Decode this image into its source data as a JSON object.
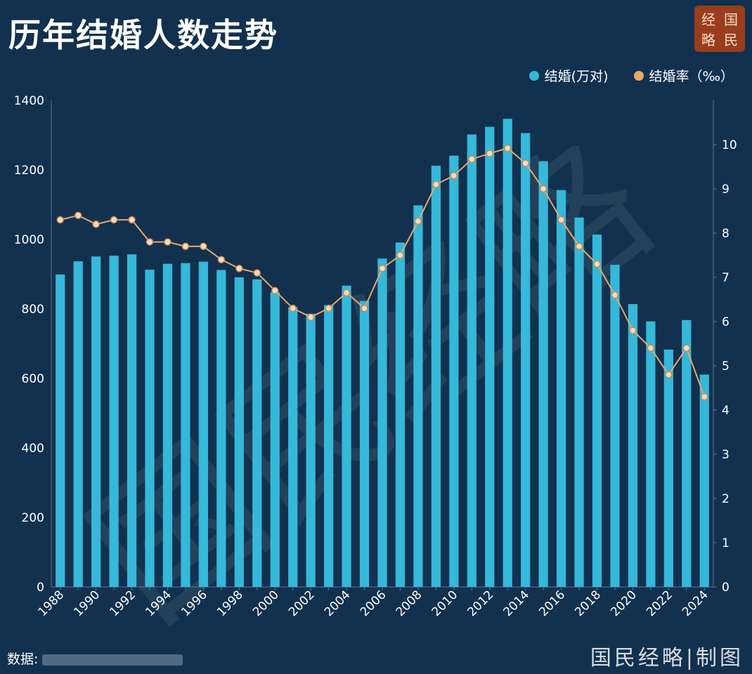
{
  "title": "历年结婚人数走势",
  "logo": [
    "经",
    "国",
    "略",
    "民"
  ],
  "legend": [
    {
      "label": "结婚(万对)",
      "color": "#35b8d9"
    },
    {
      "label": "结婚率（‰）",
      "color": "#e8a66c"
    }
  ],
  "source_label": "数据:",
  "maker": "国民经略|制图",
  "watermark": "国民经略",
  "chart_data": {
    "type": "bar",
    "categories": [
      "1988",
      "1989",
      "1990",
      "1991",
      "1992",
      "1993",
      "1994",
      "1995",
      "1996",
      "1997",
      "1998",
      "1999",
      "2000",
      "2001",
      "2002",
      "2003",
      "2004",
      "2005",
      "2006",
      "2007",
      "2008",
      "2009",
      "2010",
      "2011",
      "2012",
      "2013",
      "2014",
      "2015",
      "2016",
      "2017",
      "2018",
      "2019",
      "2020",
      "2021",
      "2022",
      "2023",
      "2024"
    ],
    "x_tick_labels": [
      "1988",
      "1990",
      "1992",
      "1994",
      "1996",
      "1998",
      "2000",
      "2002",
      "2004",
      "2006",
      "2008",
      "2010",
      "2012",
      "2014",
      "2016",
      "2018",
      "2020",
      "2022",
      "2024"
    ],
    "series": [
      {
        "name": "结婚(万对)",
        "type": "bar",
        "axis": "left",
        "color": "#35b8d9",
        "values": [
          899,
          937,
          951,
          953,
          957,
          913,
          930,
          932,
          936,
          912,
          891,
          885,
          848,
          805,
          786,
          811,
          867,
          823,
          945,
          991,
          1098,
          1212,
          1241,
          1302,
          1324,
          1347,
          1306,
          1225,
          1142,
          1063,
          1014,
          927,
          814,
          764,
          683,
          768,
          611
        ]
      },
      {
        "name": "结婚率（‰）",
        "type": "line",
        "axis": "right",
        "color": "#e8a66c",
        "values": [
          8.3,
          8.4,
          8.2,
          8.3,
          8.3,
          7.8,
          7.8,
          7.7,
          7.7,
          7.4,
          7.2,
          7.1,
          6.7,
          6.3,
          6.1,
          6.3,
          6.65,
          6.3,
          7.2,
          7.5,
          8.27,
          9.1,
          9.3,
          9.67,
          9.8,
          9.92,
          9.58,
          9.0,
          8.3,
          7.7,
          7.3,
          6.6,
          5.8,
          5.4,
          4.8,
          5.4,
          4.3
        ]
      }
    ],
    "y_left": {
      "min": 0,
      "max": 1400,
      "ticks": [
        0,
        200,
        400,
        600,
        800,
        1000,
        1200,
        1400
      ]
    },
    "y_right": {
      "min": 0,
      "max": 11,
      "ticks": [
        0,
        1,
        2,
        3,
        4,
        5,
        6,
        7,
        8,
        9,
        10
      ]
    },
    "grid": false,
    "legend_position": "top-right"
  }
}
